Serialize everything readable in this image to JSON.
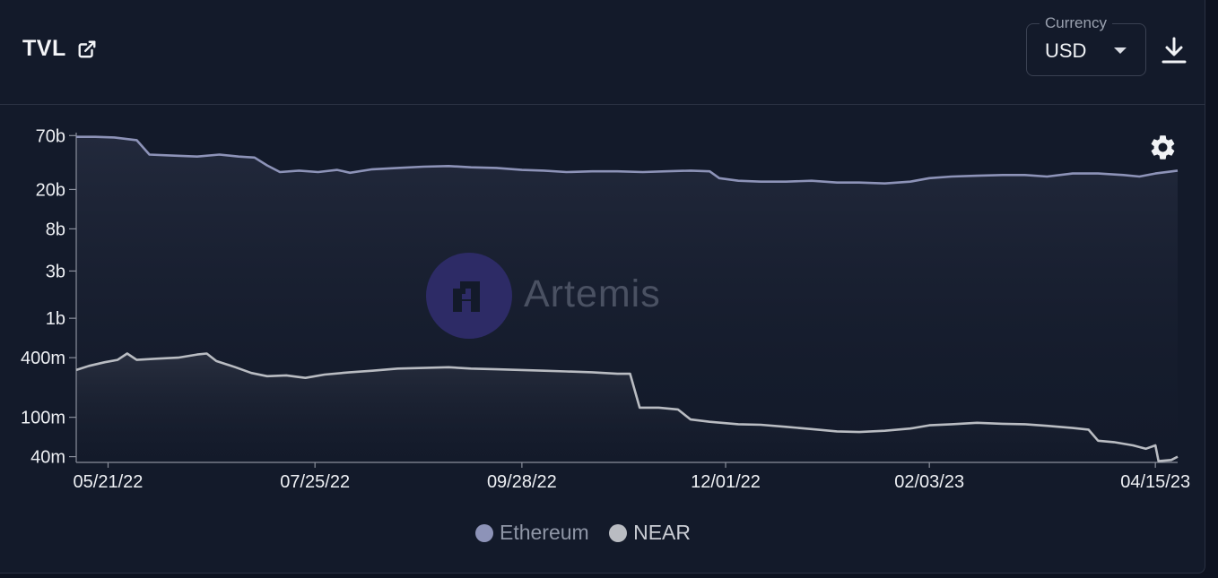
{
  "header": {
    "title": "TVL",
    "currency_label": "Currency",
    "currency_value": "USD"
  },
  "icons": {
    "external_link": "external-link-icon",
    "dropdown": "chevron-down-icon",
    "download": "download-icon",
    "settings": "gear-icon",
    "brand": "artemis-logo"
  },
  "watermark": {
    "text": "Artemis"
  },
  "colors": {
    "ethereum": "#8d93b8",
    "near": "#b9bcc2",
    "background": "#131a2a",
    "watermark_logo": "#2d2b66"
  },
  "chart_data": {
    "type": "line",
    "scale": "log",
    "title": "",
    "xlabel": "",
    "ylabel": "",
    "x_ticks": [
      "05/21/22",
      "07/25/22",
      "09/28/22",
      "12/01/22",
      "02/03/23",
      "04/15/23"
    ],
    "y_ticks": [
      {
        "label": "70b",
        "value": 70000000000
      },
      {
        "label": "20b",
        "value": 20000000000
      },
      {
        "label": "8b",
        "value": 8000000000
      },
      {
        "label": "3b",
        "value": 3000000000
      },
      {
        "label": "1b",
        "value": 1000000000
      },
      {
        "label": "400m",
        "value": 400000000
      },
      {
        "label": "100m",
        "value": 100000000
      },
      {
        "label": "40m",
        "value": 40000000
      }
    ],
    "ylim": [
      35000000,
      75000000000
    ],
    "xlim": [
      "2022-05-11",
      "2023-04-22"
    ],
    "legend_position": "bottom-center",
    "series": [
      {
        "name": "Ethereum",
        "color": "#8d93b8",
        "points": [
          [
            "2022-05-11",
            68000000000
          ],
          [
            "2022-05-17",
            68000000000
          ],
          [
            "2022-05-23",
            67000000000
          ],
          [
            "2022-05-30",
            63000000000
          ],
          [
            "2022-06-03",
            45000000000
          ],
          [
            "2022-06-10",
            44000000000
          ],
          [
            "2022-06-18",
            43000000000
          ],
          [
            "2022-06-25",
            45000000000
          ],
          [
            "2022-07-01",
            43000000000
          ],
          [
            "2022-07-06",
            42000000000
          ],
          [
            "2022-07-10",
            35000000000
          ],
          [
            "2022-07-14",
            30000000000
          ],
          [
            "2022-07-20",
            31000000000
          ],
          [
            "2022-07-26",
            30000000000
          ],
          [
            "2022-08-01",
            31500000000
          ],
          [
            "2022-08-05",
            29500000000
          ],
          [
            "2022-08-12",
            32000000000
          ],
          [
            "2022-08-20",
            33000000000
          ],
          [
            "2022-08-28",
            34000000000
          ],
          [
            "2022-09-05",
            34500000000
          ],
          [
            "2022-09-12",
            33500000000
          ],
          [
            "2022-09-20",
            33000000000
          ],
          [
            "2022-09-28",
            31500000000
          ],
          [
            "2022-10-05",
            31000000000
          ],
          [
            "2022-10-12",
            30000000000
          ],
          [
            "2022-10-20",
            30500000000
          ],
          [
            "2022-10-28",
            30500000000
          ],
          [
            "2022-11-05",
            30000000000
          ],
          [
            "2022-11-12",
            30500000000
          ],
          [
            "2022-11-20",
            31000000000
          ],
          [
            "2022-11-26",
            30500000000
          ],
          [
            "2022-11-29",
            26000000000
          ],
          [
            "2022-12-05",
            24500000000
          ],
          [
            "2022-12-12",
            24000000000
          ],
          [
            "2022-12-20",
            24000000000
          ],
          [
            "2022-12-28",
            24500000000
          ],
          [
            "2023-01-05",
            23500000000
          ],
          [
            "2023-01-12",
            23500000000
          ],
          [
            "2023-01-20",
            23000000000
          ],
          [
            "2023-01-28",
            24000000000
          ],
          [
            "2023-02-03",
            26000000000
          ],
          [
            "2023-02-10",
            27000000000
          ],
          [
            "2023-02-18",
            27500000000
          ],
          [
            "2023-02-26",
            28000000000
          ],
          [
            "2023-03-05",
            28000000000
          ],
          [
            "2023-03-12",
            27000000000
          ],
          [
            "2023-03-20",
            29000000000
          ],
          [
            "2023-03-28",
            29000000000
          ],
          [
            "2023-04-05",
            28000000000
          ],
          [
            "2023-04-10",
            27000000000
          ],
          [
            "2023-04-15",
            29000000000
          ],
          [
            "2023-04-22",
            31000000000
          ]
        ]
      },
      {
        "name": "NEAR",
        "color": "#b9bcc2",
        "points": [
          [
            "2022-05-11",
            300000000
          ],
          [
            "2022-05-15",
            330000000
          ],
          [
            "2022-05-20",
            360000000
          ],
          [
            "2022-05-24",
            380000000
          ],
          [
            "2022-05-27",
            440000000
          ],
          [
            "2022-05-30",
            380000000
          ],
          [
            "2022-06-05",
            390000000
          ],
          [
            "2022-06-12",
            400000000
          ],
          [
            "2022-06-18",
            430000000
          ],
          [
            "2022-06-21",
            440000000
          ],
          [
            "2022-06-24",
            370000000
          ],
          [
            "2022-06-30",
            320000000
          ],
          [
            "2022-07-05",
            280000000
          ],
          [
            "2022-07-10",
            260000000
          ],
          [
            "2022-07-16",
            265000000
          ],
          [
            "2022-07-22",
            250000000
          ],
          [
            "2022-07-28",
            270000000
          ],
          [
            "2022-08-05",
            285000000
          ],
          [
            "2022-08-12",
            295000000
          ],
          [
            "2022-08-20",
            310000000
          ],
          [
            "2022-08-28",
            315000000
          ],
          [
            "2022-09-05",
            320000000
          ],
          [
            "2022-09-12",
            310000000
          ],
          [
            "2022-09-20",
            305000000
          ],
          [
            "2022-09-28",
            300000000
          ],
          [
            "2022-10-05",
            295000000
          ],
          [
            "2022-10-12",
            290000000
          ],
          [
            "2022-10-20",
            285000000
          ],
          [
            "2022-10-28",
            275000000
          ],
          [
            "2022-11-01",
            275000000
          ],
          [
            "2022-11-04",
            125000000
          ],
          [
            "2022-11-10",
            125000000
          ],
          [
            "2022-11-16",
            120000000
          ],
          [
            "2022-11-20",
            95000000
          ],
          [
            "2022-11-26",
            90000000
          ],
          [
            "2022-12-05",
            85000000
          ],
          [
            "2022-12-12",
            84000000
          ],
          [
            "2022-12-20",
            80000000
          ],
          [
            "2022-12-28",
            76000000
          ],
          [
            "2023-01-05",
            72000000
          ],
          [
            "2023-01-12",
            71000000
          ],
          [
            "2023-01-20",
            73000000
          ],
          [
            "2023-01-28",
            77000000
          ],
          [
            "2023-02-03",
            83000000
          ],
          [
            "2023-02-10",
            85000000
          ],
          [
            "2023-02-18",
            88000000
          ],
          [
            "2023-02-26",
            86000000
          ],
          [
            "2023-03-05",
            85000000
          ],
          [
            "2023-03-12",
            82000000
          ],
          [
            "2023-03-20",
            78000000
          ],
          [
            "2023-03-25",
            75000000
          ],
          [
            "2023-03-28",
            58000000
          ],
          [
            "2023-04-02",
            56000000
          ],
          [
            "2023-04-08",
            52000000
          ],
          [
            "2023-04-12",
            48000000
          ],
          [
            "2023-04-15",
            52000000
          ],
          [
            "2023-04-16",
            36000000
          ],
          [
            "2023-04-20",
            37000000
          ],
          [
            "2023-04-22",
            40000000
          ]
        ]
      }
    ]
  }
}
